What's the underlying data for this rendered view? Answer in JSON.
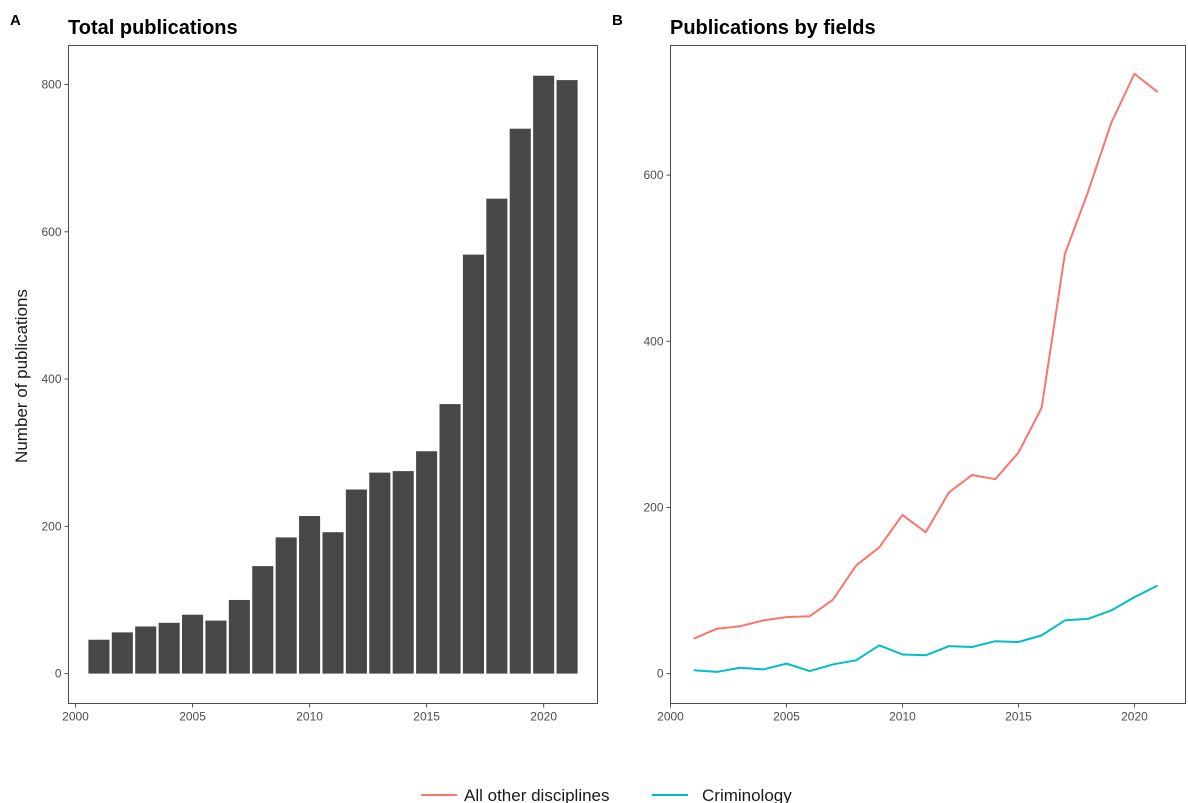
{
  "chart_data": [
    {
      "type": "bar",
      "tag": "A",
      "title": "Total publications",
      "ylabel": "Number of publications",
      "xlabel": "",
      "x": [
        2001,
        2002,
        2003,
        2004,
        2005,
        2006,
        2007,
        2008,
        2009,
        2010,
        2011,
        2012,
        2013,
        2014,
        2015,
        2016,
        2017,
        2018,
        2019,
        2020,
        2021
      ],
      "values": [
        46,
        56,
        64,
        69,
        80,
        72,
        100,
        146,
        185,
        214,
        192,
        250,
        273,
        275,
        302,
        366,
        569,
        645,
        740,
        812,
        806
      ],
      "xlim": [
        1999.7,
        2022.3
      ],
      "ylim": [
        -40.6,
        853
      ],
      "xticks": [
        "2000",
        "2005",
        "2010",
        "2015",
        "2020"
      ],
      "yticks": [
        "0",
        "200",
        "400",
        "600",
        "800"
      ],
      "bar_color": "#474747",
      "grid": false
    },
    {
      "type": "line",
      "tag": "B",
      "title": "Publications by fields",
      "ylabel": "",
      "xlabel": "",
      "x": [
        2001,
        2002,
        2003,
        2004,
        2005,
        2006,
        2007,
        2008,
        2009,
        2010,
        2011,
        2012,
        2013,
        2014,
        2015,
        2016,
        2017,
        2018,
        2019,
        2020,
        2021
      ],
      "series": [
        {
          "name": "All other disciplines",
          "color": "#F8766D",
          "values": [
            42,
            54,
            57,
            64,
            68,
            69,
            89,
            130,
            152,
            191,
            170,
            218,
            239,
            234,
            266,
            320,
            505,
            580,
            663,
            722,
            700
          ]
        },
        {
          "name": "Criminology",
          "color": "#00BFC4",
          "values": [
            4,
            2,
            7,
            5,
            12,
            3,
            11,
            16,
            34,
            23,
            22,
            33,
            32,
            39,
            38,
            46,
            64,
            66,
            76,
            92,
            106
          ]
        }
      ],
      "xlim": [
        2000,
        2022.2
      ],
      "ylim": [
        -36,
        756
      ],
      "xticks": [
        "2000",
        "2005",
        "2010",
        "2015",
        "2020"
      ],
      "yticks": [
        "0",
        "200",
        "400",
        "600"
      ],
      "grid": false,
      "legend_position": "bottom"
    }
  ]
}
